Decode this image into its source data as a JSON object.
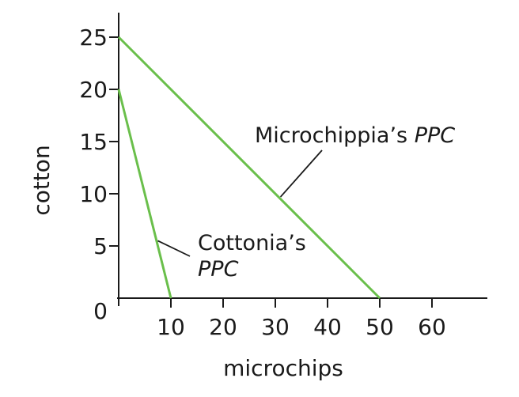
{
  "chart_data": {
    "type": "line",
    "xlabel": "microchips",
    "ylabel": "cotton",
    "xlim": [
      0,
      70
    ],
    "ylim": [
      0,
      27
    ],
    "x_ticks": [
      10,
      20,
      30,
      40,
      50,
      60
    ],
    "y_ticks": [
      5,
      10,
      15,
      20,
      25
    ],
    "origin_label": "0",
    "grid": false,
    "line_color": "#6abf4b",
    "series": [
      {
        "id": "microchippia",
        "points": [
          [
            0,
            25
          ],
          [
            50,
            0
          ]
        ],
        "label_main": "Microchippia’s ",
        "label_em": "PPC",
        "leader_point": [
          31,
          9.7
        ]
      },
      {
        "id": "cottonia",
        "points": [
          [
            0,
            20
          ],
          [
            10,
            0
          ]
        ],
        "label_main": "Cottonia’s",
        "label_em": "PPC",
        "leader_point": [
          7.5,
          5.5
        ]
      }
    ]
  }
}
